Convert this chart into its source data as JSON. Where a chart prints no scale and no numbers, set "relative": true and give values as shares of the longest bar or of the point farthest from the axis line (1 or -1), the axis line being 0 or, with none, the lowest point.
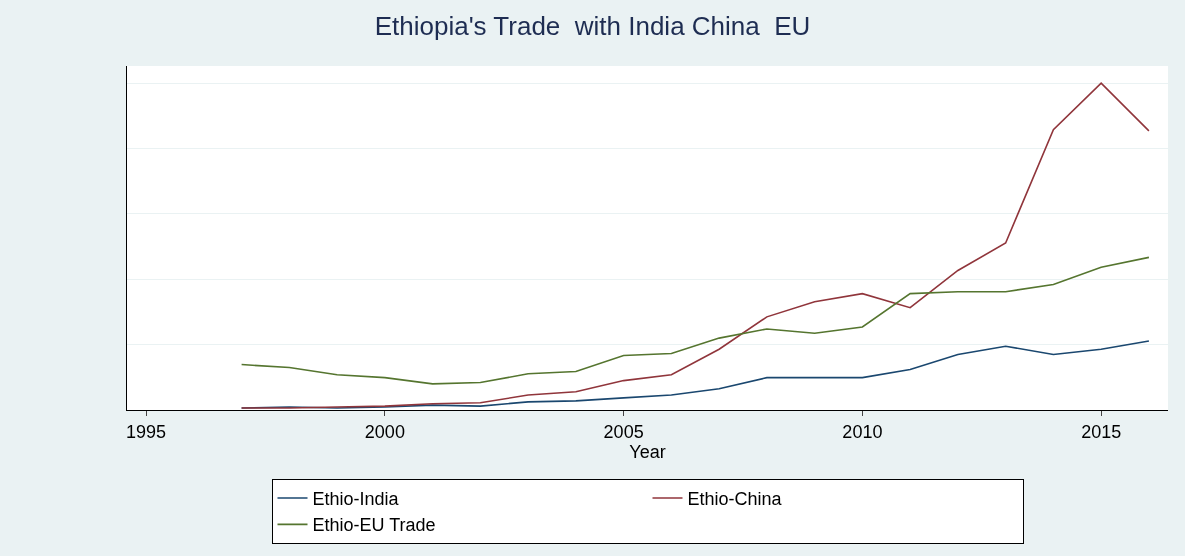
{
  "chart_data": {
    "type": "line",
    "title": "Ethiopia's Trade  with India China  EU",
    "xlabel": "Year",
    "x": [
      1997,
      1998,
      1999,
      2000,
      2001,
      2002,
      2003,
      2004,
      2005,
      2006,
      2007,
      2008,
      2009,
      2010,
      2011,
      2012,
      2013,
      2014,
      2015,
      2016
    ],
    "xlim": [
      1994.6,
      2016.4
    ],
    "xticks": [
      1995,
      2000,
      2005,
      2010,
      2015
    ],
    "relative": true,
    "grid": "y",
    "legend": "bottom",
    "marker": "none",
    "line_style": "solid",
    "series": [
      {
        "name": "Ethio-India",
        "color": "#1a476f",
        "values": [
          0.006,
          0.009,
          0.006,
          0.009,
          0.015,
          0.012,
          0.025,
          0.028,
          0.037,
          0.046,
          0.065,
          0.099,
          0.099,
          0.099,
          0.124,
          0.17,
          0.195,
          0.17,
          0.186,
          0.211
        ]
      },
      {
        "name": "Ethio-China",
        "color": "#90353b",
        "values": [
          0.006,
          0.006,
          0.009,
          0.012,
          0.019,
          0.022,
          0.046,
          0.056,
          0.09,
          0.108,
          0.186,
          0.285,
          0.331,
          0.356,
          0.313,
          0.427,
          0.511,
          0.858,
          1,
          0.854
        ]
      },
      {
        "name": "Ethio-EU Trade",
        "color": "#55752f",
        "values": [
          0.139,
          0.13,
          0.108,
          0.099,
          0.08,
          0.084,
          0.111,
          0.118,
          0.167,
          0.173,
          0.22,
          0.248,
          0.235,
          0.254,
          0.356,
          0.362,
          0.362,
          0.384,
          0.437,
          0.467
        ]
      }
    ]
  }
}
